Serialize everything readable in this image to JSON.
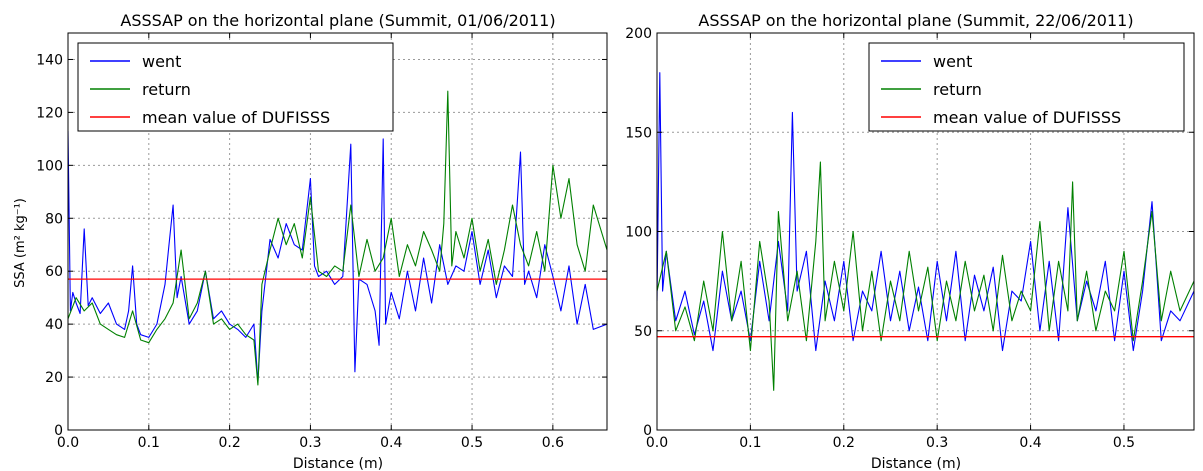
{
  "chart_data": [
    {
      "type": "line",
      "title": "ASSSAP on the horizontal plane (Summit, 01/06/2011)",
      "xlabel": "Distance (m)",
      "ylabel": "SSA (m² kg⁻¹)",
      "xlim": [
        0,
        0.667
      ],
      "ylim": [
        0,
        150
      ],
      "xticks": [
        0,
        0.1,
        0.2,
        0.3,
        0.4,
        0.5,
        0.6
      ],
      "xtick_labels": [
        "0.0",
        "0.1",
        "0.2",
        "0.3",
        "0.4",
        "0.5",
        "0.6"
      ],
      "yticks": [
        0,
        20,
        40,
        60,
        80,
        100,
        120,
        140
      ],
      "ytick_labels": [
        "0",
        "20",
        "40",
        "60",
        "80",
        "100",
        "120",
        "140"
      ],
      "grid": true,
      "legend_position": "top-left",
      "series": [
        {
          "name": "went",
          "color": "#0000ff",
          "x": [
            0,
            0.003,
            0.006,
            0.01,
            0.015,
            0.02,
            0.025,
            0.03,
            0.04,
            0.05,
            0.06,
            0.07,
            0.075,
            0.08,
            0.085,
            0.09,
            0.1,
            0.11,
            0.12,
            0.125,
            0.13,
            0.135,
            0.14,
            0.15,
            0.16,
            0.17,
            0.18,
            0.19,
            0.2,
            0.21,
            0.22,
            0.23,
            0.235,
            0.24,
            0.25,
            0.26,
            0.27,
            0.28,
            0.29,
            0.3,
            0.305,
            0.31,
            0.32,
            0.33,
            0.34,
            0.35,
            0.355,
            0.36,
            0.37,
            0.38,
            0.385,
            0.39,
            0.393,
            0.4,
            0.41,
            0.42,
            0.43,
            0.44,
            0.45,
            0.46,
            0.47,
            0.48,
            0.49,
            0.5,
            0.51,
            0.52,
            0.53,
            0.54,
            0.55,
            0.56,
            0.565,
            0.57,
            0.58,
            0.59,
            0.6,
            0.61,
            0.62,
            0.63,
            0.64,
            0.65,
            0.667
          ],
          "y": [
            113,
            45,
            52,
            48,
            44,
            76,
            47,
            50,
            44,
            48,
            40,
            38,
            45,
            62,
            40,
            36,
            35,
            40,
            55,
            70,
            85,
            50,
            58,
            40,
            45,
            60,
            42,
            45,
            40,
            38,
            35,
            40,
            18,
            45,
            72,
            65,
            78,
            70,
            68,
            95,
            62,
            58,
            60,
            55,
            58,
            108,
            22,
            57,
            55,
            45,
            32,
            110,
            40,
            52,
            42,
            60,
            45,
            65,
            48,
            70,
            55,
            62,
            60,
            75,
            55,
            68,
            50,
            62,
            58,
            105,
            55,
            60,
            50,
            70,
            58,
            45,
            62,
            40,
            55,
            38,
            40
          ]
        },
        {
          "name": "return",
          "color": "#008000",
          "x": [
            0,
            0.01,
            0.02,
            0.03,
            0.04,
            0.05,
            0.06,
            0.07,
            0.08,
            0.09,
            0.1,
            0.11,
            0.12,
            0.13,
            0.14,
            0.15,
            0.16,
            0.17,
            0.18,
            0.19,
            0.2,
            0.21,
            0.22,
            0.23,
            0.235,
            0.24,
            0.25,
            0.26,
            0.27,
            0.28,
            0.29,
            0.3,
            0.31,
            0.32,
            0.33,
            0.34,
            0.35,
            0.36,
            0.37,
            0.38,
            0.39,
            0.4,
            0.41,
            0.42,
            0.43,
            0.44,
            0.45,
            0.46,
            0.465,
            0.47,
            0.475,
            0.48,
            0.49,
            0.5,
            0.51,
            0.52,
            0.53,
            0.54,
            0.55,
            0.56,
            0.57,
            0.58,
            0.59,
            0.6,
            0.61,
            0.62,
            0.63,
            0.64,
            0.65,
            0.667
          ],
          "y": [
            42,
            50,
            45,
            48,
            40,
            38,
            36,
            35,
            45,
            34,
            33,
            38,
            42,
            48,
            68,
            42,
            48,
            60,
            40,
            42,
            38,
            40,
            36,
            34,
            17,
            55,
            68,
            80,
            70,
            78,
            65,
            88,
            60,
            58,
            62,
            60,
            85,
            58,
            72,
            60,
            65,
            80,
            58,
            70,
            62,
            75,
            68,
            60,
            78,
            128,
            62,
            75,
            65,
            80,
            60,
            72,
            55,
            68,
            85,
            70,
            62,
            75,
            60,
            100,
            80,
            95,
            70,
            60,
            85,
            68
          ]
        },
        {
          "name": "mean value of DUFISSS",
          "color": "#ff0000",
          "x": [
            0,
            0.667
          ],
          "y": [
            57,
            57
          ]
        }
      ]
    },
    {
      "type": "line",
      "title": "ASSSAP on the horizontal plane (Summit, 22/06/2011)",
      "xlabel": "Distance (m)",
      "ylabel": "",
      "xlim": [
        0,
        0.575
      ],
      "ylim": [
        0,
        200
      ],
      "xticks": [
        0,
        0.1,
        0.2,
        0.3,
        0.4,
        0.5
      ],
      "xtick_labels": [
        "0.0",
        "0.1",
        "0.2",
        "0.3",
        "0.4",
        "0.5"
      ],
      "yticks": [
        0,
        50,
        100,
        150,
        200
      ],
      "ytick_labels": [
        "0",
        "50",
        "100",
        "150",
        "200"
      ],
      "grid": true,
      "legend_position": "top-right",
      "series": [
        {
          "name": "went",
          "color": "#0000ff",
          "x": [
            0,
            0.003,
            0.006,
            0.01,
            0.02,
            0.03,
            0.04,
            0.05,
            0.06,
            0.07,
            0.08,
            0.09,
            0.1,
            0.11,
            0.12,
            0.13,
            0.14,
            0.145,
            0.15,
            0.16,
            0.17,
            0.18,
            0.19,
            0.2,
            0.21,
            0.22,
            0.23,
            0.24,
            0.25,
            0.26,
            0.27,
            0.28,
            0.29,
            0.3,
            0.31,
            0.32,
            0.33,
            0.34,
            0.35,
            0.36,
            0.37,
            0.38,
            0.39,
            0.4,
            0.41,
            0.42,
            0.43,
            0.44,
            0.45,
            0.46,
            0.47,
            0.48,
            0.49,
            0.5,
            0.51,
            0.52,
            0.53,
            0.54,
            0.55,
            0.56,
            0.575
          ],
          "y": [
            65,
            180,
            70,
            90,
            55,
            70,
            48,
            65,
            40,
            80,
            55,
            70,
            45,
            85,
            55,
            95,
            60,
            160,
            70,
            90,
            40,
            75,
            55,
            85,
            45,
            70,
            60,
            90,
            55,
            80,
            50,
            72,
            45,
            85,
            55,
            90,
            45,
            78,
            60,
            82,
            40,
            70,
            65,
            95,
            50,
            85,
            45,
            112,
            55,
            75,
            60,
            85,
            45,
            80,
            40,
            70,
            115,
            45,
            60,
            55,
            70
          ]
        },
        {
          "name": "return",
          "color": "#008000",
          "x": [
            0,
            0.01,
            0.02,
            0.03,
            0.04,
            0.05,
            0.06,
            0.07,
            0.08,
            0.09,
            0.1,
            0.11,
            0.12,
            0.125,
            0.13,
            0.14,
            0.15,
            0.16,
            0.17,
            0.175,
            0.18,
            0.19,
            0.2,
            0.21,
            0.22,
            0.23,
            0.24,
            0.25,
            0.26,
            0.27,
            0.28,
            0.29,
            0.3,
            0.31,
            0.32,
            0.33,
            0.34,
            0.35,
            0.36,
            0.37,
            0.38,
            0.39,
            0.4,
            0.41,
            0.42,
            0.43,
            0.44,
            0.445,
            0.45,
            0.46,
            0.47,
            0.48,
            0.49,
            0.5,
            0.51,
            0.52,
            0.53,
            0.54,
            0.55,
            0.56,
            0.575
          ],
          "y": [
            70,
            90,
            50,
            62,
            45,
            75,
            50,
            100,
            55,
            85,
            40,
            95,
            65,
            20,
            110,
            55,
            80,
            45,
            95,
            135,
            55,
            85,
            60,
            100,
            50,
            80,
            45,
            75,
            55,
            90,
            60,
            82,
            45,
            75,
            55,
            85,
            60,
            78,
            50,
            88,
            55,
            70,
            60,
            105,
            50,
            85,
            60,
            125,
            55,
            80,
            50,
            70,
            60,
            90,
            45,
            75,
            110,
            55,
            80,
            60,
            75
          ]
        },
        {
          "name": "mean value of DUFISSS",
          "color": "#ff0000",
          "x": [
            0,
            0.575
          ],
          "y": [
            47,
            47
          ]
        }
      ]
    }
  ]
}
